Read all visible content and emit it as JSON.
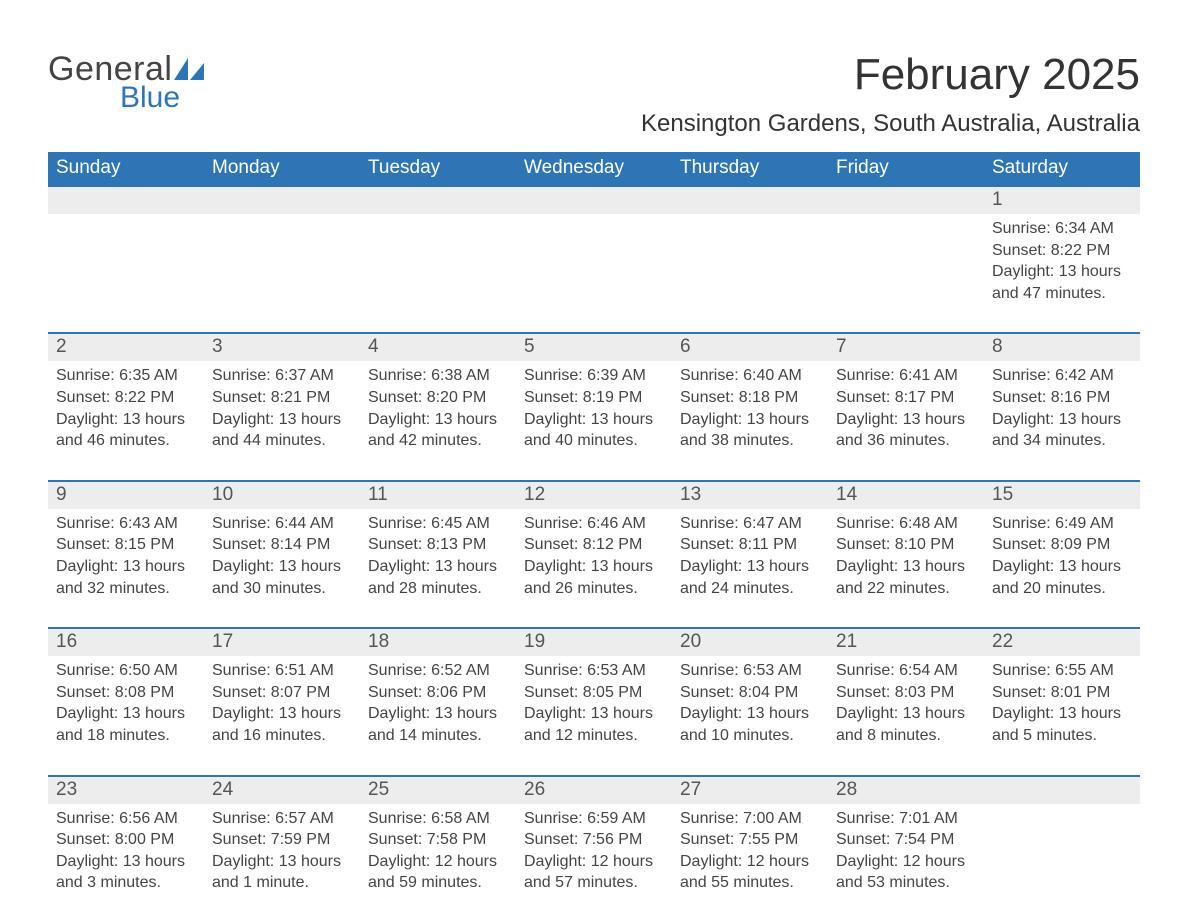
{
  "logo": {
    "word1": "General",
    "word2": "Blue"
  },
  "title": "February 2025",
  "location": "Kensington Gardens, South Australia, Australia",
  "colors": {
    "header_bg": "#2e75b6",
    "header_text": "#ffffff",
    "daynum_bg": "#ededed",
    "daynum_border": "#2e75b6",
    "body_text": "#444444",
    "logo_gray": "#444444",
    "logo_blue": "#2e75b6",
    "background": "#ffffff"
  },
  "typography": {
    "title_fontsize": 44,
    "location_fontsize": 24,
    "dayheader_fontsize": 19,
    "daynum_fontsize": 19,
    "cell_fontsize": 16
  },
  "weekdays": [
    "Sunday",
    "Monday",
    "Tuesday",
    "Wednesday",
    "Thursday",
    "Friday",
    "Saturday"
  ],
  "weeks": [
    [
      {
        "num": "",
        "sunrise": "",
        "sunset": "",
        "daylight": ""
      },
      {
        "num": "",
        "sunrise": "",
        "sunset": "",
        "daylight": ""
      },
      {
        "num": "",
        "sunrise": "",
        "sunset": "",
        "daylight": ""
      },
      {
        "num": "",
        "sunrise": "",
        "sunset": "",
        "daylight": ""
      },
      {
        "num": "",
        "sunrise": "",
        "sunset": "",
        "daylight": ""
      },
      {
        "num": "",
        "sunrise": "",
        "sunset": "",
        "daylight": ""
      },
      {
        "num": "1",
        "sunrise": "Sunrise: 6:34 AM",
        "sunset": "Sunset: 8:22 PM",
        "daylight": "Daylight: 13 hours and 47 minutes."
      }
    ],
    [
      {
        "num": "2",
        "sunrise": "Sunrise: 6:35 AM",
        "sunset": "Sunset: 8:22 PM",
        "daylight": "Daylight: 13 hours and 46 minutes."
      },
      {
        "num": "3",
        "sunrise": "Sunrise: 6:37 AM",
        "sunset": "Sunset: 8:21 PM",
        "daylight": "Daylight: 13 hours and 44 minutes."
      },
      {
        "num": "4",
        "sunrise": "Sunrise: 6:38 AM",
        "sunset": "Sunset: 8:20 PM",
        "daylight": "Daylight: 13 hours and 42 minutes."
      },
      {
        "num": "5",
        "sunrise": "Sunrise: 6:39 AM",
        "sunset": "Sunset: 8:19 PM",
        "daylight": "Daylight: 13 hours and 40 minutes."
      },
      {
        "num": "6",
        "sunrise": "Sunrise: 6:40 AM",
        "sunset": "Sunset: 8:18 PM",
        "daylight": "Daylight: 13 hours and 38 minutes."
      },
      {
        "num": "7",
        "sunrise": "Sunrise: 6:41 AM",
        "sunset": "Sunset: 8:17 PM",
        "daylight": "Daylight: 13 hours and 36 minutes."
      },
      {
        "num": "8",
        "sunrise": "Sunrise: 6:42 AM",
        "sunset": "Sunset: 8:16 PM",
        "daylight": "Daylight: 13 hours and 34 minutes."
      }
    ],
    [
      {
        "num": "9",
        "sunrise": "Sunrise: 6:43 AM",
        "sunset": "Sunset: 8:15 PM",
        "daylight": "Daylight: 13 hours and 32 minutes."
      },
      {
        "num": "10",
        "sunrise": "Sunrise: 6:44 AM",
        "sunset": "Sunset: 8:14 PM",
        "daylight": "Daylight: 13 hours and 30 minutes."
      },
      {
        "num": "11",
        "sunrise": "Sunrise: 6:45 AM",
        "sunset": "Sunset: 8:13 PM",
        "daylight": "Daylight: 13 hours and 28 minutes."
      },
      {
        "num": "12",
        "sunrise": "Sunrise: 6:46 AM",
        "sunset": "Sunset: 8:12 PM",
        "daylight": "Daylight: 13 hours and 26 minutes."
      },
      {
        "num": "13",
        "sunrise": "Sunrise: 6:47 AM",
        "sunset": "Sunset: 8:11 PM",
        "daylight": "Daylight: 13 hours and 24 minutes."
      },
      {
        "num": "14",
        "sunrise": "Sunrise: 6:48 AM",
        "sunset": "Sunset: 8:10 PM",
        "daylight": "Daylight: 13 hours and 22 minutes."
      },
      {
        "num": "15",
        "sunrise": "Sunrise: 6:49 AM",
        "sunset": "Sunset: 8:09 PM",
        "daylight": "Daylight: 13 hours and 20 minutes."
      }
    ],
    [
      {
        "num": "16",
        "sunrise": "Sunrise: 6:50 AM",
        "sunset": "Sunset: 8:08 PM",
        "daylight": "Daylight: 13 hours and 18 minutes."
      },
      {
        "num": "17",
        "sunrise": "Sunrise: 6:51 AM",
        "sunset": "Sunset: 8:07 PM",
        "daylight": "Daylight: 13 hours and 16 minutes."
      },
      {
        "num": "18",
        "sunrise": "Sunrise: 6:52 AM",
        "sunset": "Sunset: 8:06 PM",
        "daylight": "Daylight: 13 hours and 14 minutes."
      },
      {
        "num": "19",
        "sunrise": "Sunrise: 6:53 AM",
        "sunset": "Sunset: 8:05 PM",
        "daylight": "Daylight: 13 hours and 12 minutes."
      },
      {
        "num": "20",
        "sunrise": "Sunrise: 6:53 AM",
        "sunset": "Sunset: 8:04 PM",
        "daylight": "Daylight: 13 hours and 10 minutes."
      },
      {
        "num": "21",
        "sunrise": "Sunrise: 6:54 AM",
        "sunset": "Sunset: 8:03 PM",
        "daylight": "Daylight: 13 hours and 8 minutes."
      },
      {
        "num": "22",
        "sunrise": "Sunrise: 6:55 AM",
        "sunset": "Sunset: 8:01 PM",
        "daylight": "Daylight: 13 hours and 5 minutes."
      }
    ],
    [
      {
        "num": "23",
        "sunrise": "Sunrise: 6:56 AM",
        "sunset": "Sunset: 8:00 PM",
        "daylight": "Daylight: 13 hours and 3 minutes."
      },
      {
        "num": "24",
        "sunrise": "Sunrise: 6:57 AM",
        "sunset": "Sunset: 7:59 PM",
        "daylight": "Daylight: 13 hours and 1 minute."
      },
      {
        "num": "25",
        "sunrise": "Sunrise: 6:58 AM",
        "sunset": "Sunset: 7:58 PM",
        "daylight": "Daylight: 12 hours and 59 minutes."
      },
      {
        "num": "26",
        "sunrise": "Sunrise: 6:59 AM",
        "sunset": "Sunset: 7:56 PM",
        "daylight": "Daylight: 12 hours and 57 minutes."
      },
      {
        "num": "27",
        "sunrise": "Sunrise: 7:00 AM",
        "sunset": "Sunset: 7:55 PM",
        "daylight": "Daylight: 12 hours and 55 minutes."
      },
      {
        "num": "28",
        "sunrise": "Sunrise: 7:01 AM",
        "sunset": "Sunset: 7:54 PM",
        "daylight": "Daylight: 12 hours and 53 minutes."
      },
      {
        "num": "",
        "sunrise": "",
        "sunset": "",
        "daylight": ""
      }
    ]
  ]
}
